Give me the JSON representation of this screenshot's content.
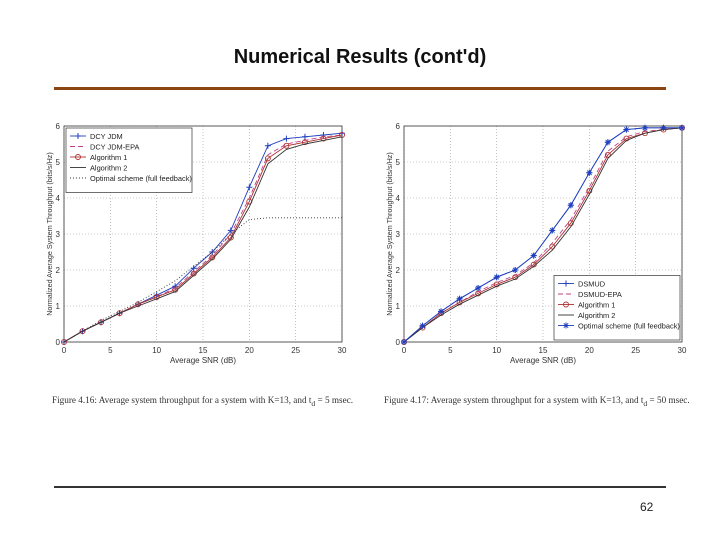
{
  "slide": {
    "title": "Numerical Results (cont'd)",
    "page_number": "62",
    "accent_color": "#8b4513"
  },
  "captions": {
    "left": "Figure 4.16: Average system throughput for a system with K=13, and t",
    "left_sub": "d",
    "left_tail": " = 5 msec.",
    "right": "Figure 4.17: Average system throughput for a system with K=13, and t",
    "right_sub": "d",
    "right_tail": " = 50 msec."
  },
  "chart_data": [
    {
      "type": "line",
      "xlabel": "Average SNR (dB)",
      "ylabel": "Normalized Average System Throughput (bits/s/Hz)",
      "xlim": [
        0,
        30
      ],
      "ylim": [
        0,
        6
      ],
      "xticks": [
        "0",
        "5",
        "10",
        "15",
        "20",
        "25",
        "30"
      ],
      "yticks": [
        "0",
        "1",
        "2",
        "3",
        "4",
        "5",
        "6"
      ],
      "grid": true,
      "legend_position": "top-left",
      "x": [
        0,
        2,
        4,
        6,
        8,
        10,
        12,
        14,
        16,
        18,
        20,
        22,
        24,
        26,
        28,
        30
      ],
      "series": [
        {
          "name": "DCY JDM",
          "color": "#1f3fbf",
          "marker": "+",
          "dash": "",
          "values": [
            0,
            0.3,
            0.55,
            0.8,
            1.05,
            1.3,
            1.55,
            2.05,
            2.5,
            3.1,
            4.3,
            5.45,
            5.65,
            5.7,
            5.75,
            5.8
          ]
        },
        {
          "name": "DCY JDM-EPA",
          "color": "#c0408a",
          "marker": "",
          "dash": "5,3",
          "values": [
            0,
            0.3,
            0.55,
            0.8,
            1.05,
            1.25,
            1.5,
            1.95,
            2.4,
            3.0,
            4.0,
            5.2,
            5.5,
            5.6,
            5.7,
            5.75
          ]
        },
        {
          "name": "Algorithm 1",
          "color": "#b03030",
          "marker": "o",
          "dash": "",
          "values": [
            0,
            0.3,
            0.55,
            0.8,
            1.05,
            1.25,
            1.45,
            1.9,
            2.35,
            2.9,
            3.9,
            5.1,
            5.45,
            5.55,
            5.65,
            5.75
          ]
        },
        {
          "name": "Algorithm 2",
          "color": "#333333",
          "marker": "",
          "dash": "",
          "values": [
            0,
            0.3,
            0.55,
            0.8,
            1.0,
            1.2,
            1.4,
            1.85,
            2.3,
            2.85,
            3.75,
            4.95,
            5.35,
            5.5,
            5.6,
            5.7
          ]
        },
        {
          "name": "Optimal scheme (full feedback)",
          "color": "#333333",
          "marker": "",
          "dash": "1,2",
          "values": [
            0,
            0.3,
            0.6,
            0.85,
            1.1,
            1.4,
            1.7,
            2.1,
            2.5,
            3.0,
            3.4,
            3.45,
            3.45,
            3.45,
            3.45,
            3.45
          ]
        }
      ]
    },
    {
      "type": "line",
      "xlabel": "Average SNR (dB)",
      "ylabel": "Normalized Average System Throughput (bits/s/Hz)",
      "xlim": [
        0,
        30
      ],
      "ylim": [
        0,
        6
      ],
      "xticks": [
        "0",
        "5",
        "10",
        "15",
        "20",
        "25",
        "30"
      ],
      "yticks": [
        "0",
        "1",
        "2",
        "3",
        "4",
        "5",
        "6"
      ],
      "grid": true,
      "legend_position": "bottom-right",
      "x": [
        0,
        2,
        4,
        6,
        8,
        10,
        12,
        14,
        16,
        18,
        20,
        22,
        24,
        26,
        28,
        30
      ],
      "series": [
        {
          "name": "DSMUD",
          "color": "#1f3fbf",
          "marker": "+",
          "dash": "",
          "values": [
            0,
            0.45,
            0.85,
            1.2,
            1.5,
            1.8,
            2.0,
            2.4,
            3.1,
            3.8,
            4.7,
            5.55,
            5.9,
            5.95,
            5.95,
            5.95
          ]
        },
        {
          "name": "DSMUD-EPA",
          "color": "#c0408a",
          "marker": "",
          "dash": "5,3",
          "values": [
            0,
            0.4,
            0.8,
            1.1,
            1.4,
            1.65,
            1.85,
            2.2,
            2.75,
            3.4,
            4.3,
            5.3,
            5.7,
            5.85,
            5.9,
            5.95
          ]
        },
        {
          "name": "Algorithm 1",
          "color": "#b03030",
          "marker": "o",
          "dash": "",
          "values": [
            0,
            0.4,
            0.8,
            1.1,
            1.35,
            1.6,
            1.8,
            2.15,
            2.65,
            3.3,
            4.2,
            5.2,
            5.65,
            5.8,
            5.9,
            5.95
          ]
        },
        {
          "name": "Algorithm 2",
          "color": "#333333",
          "marker": "",
          "dash": "",
          "values": [
            0,
            0.4,
            0.75,
            1.05,
            1.3,
            1.55,
            1.75,
            2.1,
            2.55,
            3.2,
            4.1,
            5.1,
            5.6,
            5.8,
            5.9,
            5.95
          ]
        },
        {
          "name": "Optimal scheme (full feedback)",
          "color": "#1f3fbf",
          "marker": "*",
          "dash": "",
          "values": [
            0,
            0.45,
            0.85,
            1.2,
            1.5,
            1.8,
            2.0,
            2.4,
            3.1,
            3.8,
            4.7,
            5.55,
            5.9,
            5.95,
            5.95,
            5.95
          ]
        }
      ]
    }
  ]
}
